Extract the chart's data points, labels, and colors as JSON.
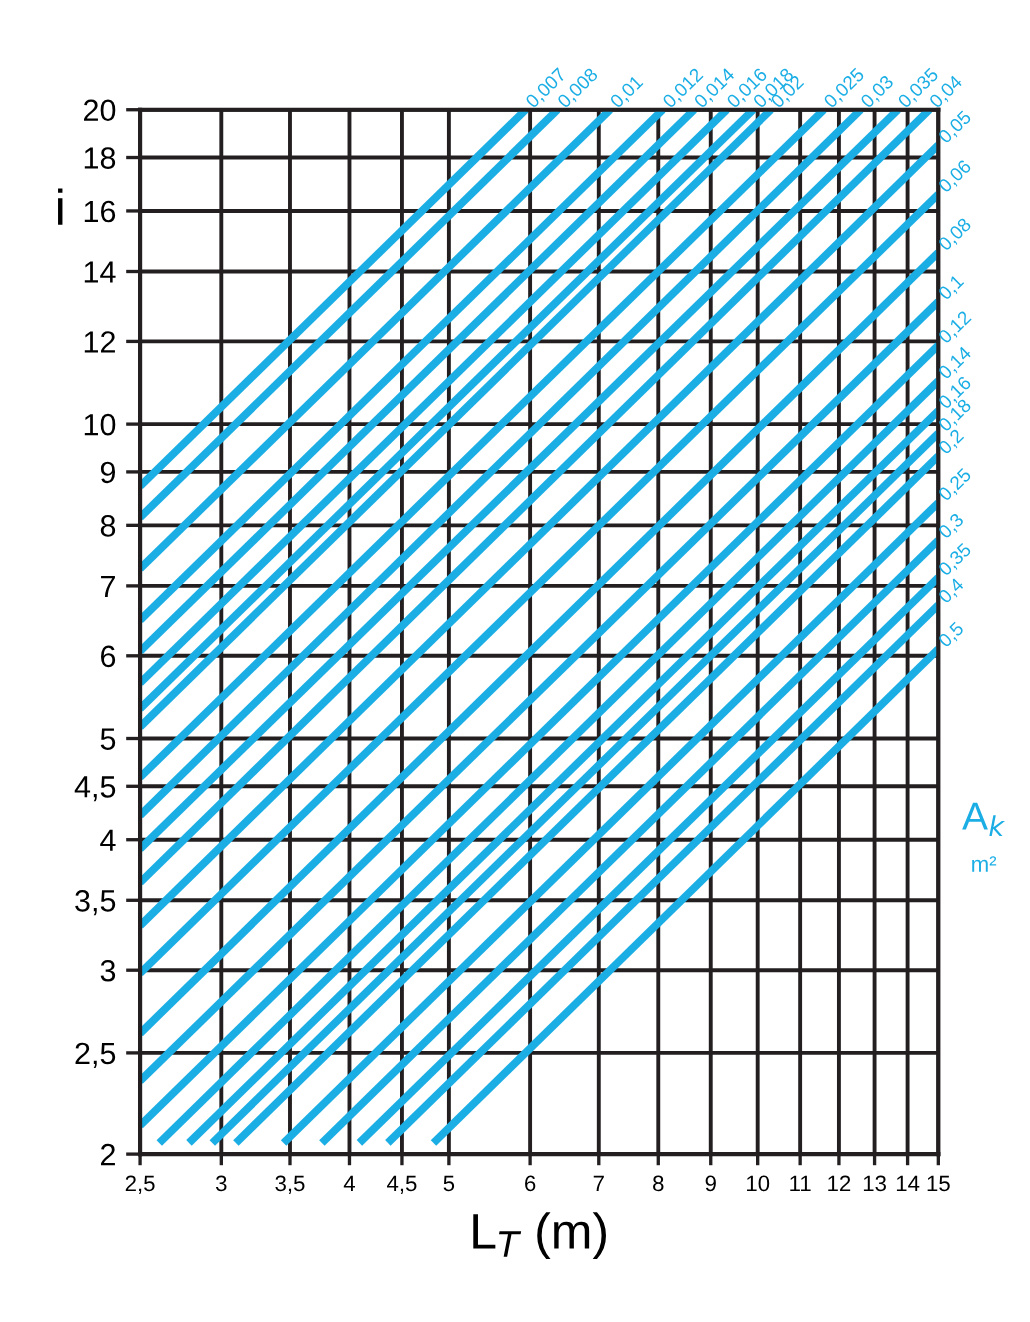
{
  "chart_data": {
    "type": "line",
    "xlabel": "L$_{T}$ (m)",
    "ylabel": "i",
    "legend_title": "A$_{k}$",
    "annotations": [
      "m²"
    ],
    "log": "xy",
    "grid": true,
    "marker": "none",
    "line_style": "solid",
    "xlim": [
      2.5,
      15
    ],
    "ylim": [
      2,
      20
    ],
    "xticks": [
      {
        "value": 2.5,
        "label": "2,5"
      },
      3,
      {
        "value": 3.5,
        "label": "3,5"
      },
      4,
      {
        "value": 4.5,
        "label": "4,5"
      },
      5,
      6,
      7,
      8,
      9,
      10,
      11,
      12,
      13,
      14,
      15
    ],
    "yticks": [
      2,
      {
        "value": 2.5,
        "label": "2,5"
      },
      3,
      {
        "value": 3.5,
        "label": "3,5"
      },
      4,
      {
        "value": 4.5,
        "label": "4,5"
      },
      5,
      6,
      7,
      8,
      9,
      10,
      12,
      14,
      16,
      18,
      20
    ],
    "series": [
      {
        "name": "0,007",
        "color": "#1aaee5",
        "x": [
          2.5,
          5.94
        ],
        "values": [
          8.72,
          20
        ]
      },
      {
        "name": "0,008",
        "color": "#1aaee5",
        "x": [
          2.5,
          6.38
        ],
        "values": [
          8.14,
          20
        ]
      },
      {
        "name": "0,01",
        "color": "#1aaee5",
        "x": [
          2.5,
          7.18
        ],
        "values": [
          7.27,
          20
        ]
      },
      {
        "name": "0,012",
        "color": "#1aaee5",
        "x": [
          2.5,
          8.08
        ],
        "values": [
          6.49,
          20
        ]
      },
      {
        "name": "0,014",
        "color": "#1aaee5",
        "x": [
          2.5,
          8.67
        ],
        "values": [
          6.06,
          20
        ]
      },
      {
        "name": "0,016",
        "color": "#1aaee5",
        "x": [
          2.5,
          9.33
        ],
        "values": [
          5.65,
          20
        ]
      },
      {
        "name": "0,018",
        "color": "#1aaee5",
        "x": [
          2.5,
          9.9
        ],
        "values": [
          5.34,
          20
        ]
      },
      {
        "name": "0,02",
        "color": "#1aaee5",
        "x": [
          2.5,
          10.3
        ],
        "values": [
          5.13,
          20
        ]
      },
      {
        "name": "0,025",
        "color": "#1aaee5",
        "x": [
          2.5,
          11.6
        ],
        "values": [
          4.59,
          20
        ]
      },
      {
        "name": "0,03",
        "color": "#1aaee5",
        "x": [
          2.5,
          12.6
        ],
        "values": [
          4.22,
          20
        ]
      },
      {
        "name": "0,035",
        "color": "#1aaee5",
        "x": [
          2.5,
          13.7
        ],
        "values": [
          3.92,
          20
        ]
      },
      {
        "name": "0,04",
        "color": "#1aaee5",
        "x": [
          2.5,
          14.7
        ],
        "values": [
          3.64,
          20
        ]
      },
      {
        "name": "0,05",
        "color": "#1aaee5",
        "x": [
          2.5,
          15
        ],
        "values": [
          3.31,
          18.5
        ]
      },
      {
        "name": "0,06",
        "color": "#1aaee5",
        "x": [
          2.5,
          15
        ],
        "values": [
          2.98,
          16.6
        ]
      },
      {
        "name": "0,08",
        "color": "#1aaee5",
        "x": [
          2.5,
          15
        ],
        "values": [
          2.61,
          14.6
        ]
      },
      {
        "name": "0,1",
        "color": "#1aaee5",
        "x": [
          2.5,
          15
        ],
        "values": [
          2.35,
          13.1
        ]
      },
      {
        "name": "0,12",
        "color": "#1aaee5",
        "x": [
          2.5,
          15
        ],
        "values": [
          2.13,
          11.9
        ]
      },
      {
        "name": "0,14",
        "color": "#1aaee5",
        "x": [
          2.61,
          15
        ],
        "values": [
          2.05,
          11.0
        ]
      },
      {
        "name": "0,16",
        "color": "#1aaee5",
        "x": [
          2.79,
          15
        ],
        "values": [
          2.05,
          10.3
        ]
      },
      {
        "name": "0,18",
        "color": "#1aaee5",
        "x": [
          2.94,
          15
        ],
        "values": [
          2.05,
          9.8
        ]
      },
      {
        "name": "0,2",
        "color": "#1aaee5",
        "x": [
          3.1,
          15
        ],
        "values": [
          2.05,
          9.32
        ]
      },
      {
        "name": "0,25",
        "color": "#1aaee5",
        "x": [
          3.45,
          15
        ],
        "values": [
          2.05,
          8.41
        ]
      },
      {
        "name": "0,3",
        "color": "#1aaee5",
        "x": [
          3.76,
          15
        ],
        "values": [
          2.05,
          7.74
        ]
      },
      {
        "name": "0,35",
        "color": "#1aaee5",
        "x": [
          4.09,
          15
        ],
        "values": [
          2.05,
          7.13
        ]
      },
      {
        "name": "0,4",
        "color": "#1aaee5",
        "x": [
          4.36,
          15
        ],
        "values": [
          2.05,
          6.71
        ]
      },
      {
        "name": "0,5",
        "color": "#1aaee5",
        "x": [
          4.83,
          15
        ],
        "values": [
          2.05,
          6.09
        ]
      }
    ]
  }
}
